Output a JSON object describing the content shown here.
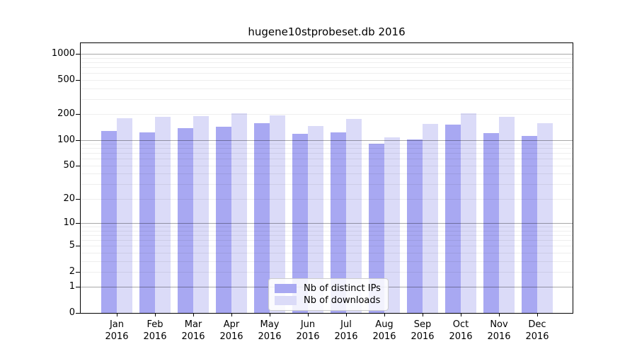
{
  "title": "hugene10stprobeset.db 2016",
  "chart_data": {
    "type": "bar",
    "scale": "log10(1+x)",
    "title": "hugene10stprobeset.db 2016",
    "categories": [
      "Jan",
      "Feb",
      "Mar",
      "Apr",
      "May",
      "Jun",
      "Jul",
      "Aug",
      "Sep",
      "Oct",
      "Nov",
      "Dec"
    ],
    "year": "2016",
    "series": [
      {
        "name": "Nb of distinct IPs",
        "color": "#a8a8f2",
        "values": [
          127,
          123,
          137,
          142,
          158,
          117,
          123,
          90,
          101,
          150,
          120,
          111
        ]
      },
      {
        "name": "Nb of downloads",
        "color": "#dbdbf8",
        "values": [
          180,
          185,
          188,
          203,
          192,
          146,
          176,
          107,
          154,
          203,
          186,
          156
        ]
      }
    ],
    "ytick_values": [
      0,
      1,
      2,
      5,
      10,
      20,
      50,
      100,
      200,
      500,
      1000
    ],
    "ytick_labels": [
      "0",
      "1",
      "2",
      "5",
      "10",
      "20",
      "50",
      "100",
      "200",
      "500",
      "1000"
    ],
    "major_gridlines": [
      1,
      10,
      100,
      1000
    ],
    "minor_gridlines": [
      2,
      3,
      4,
      5,
      6,
      7,
      8,
      9,
      20,
      30,
      40,
      50,
      60,
      70,
      80,
      90,
      200,
      300,
      400,
      500,
      600,
      700,
      800,
      900
    ],
    "ylim": [
      0,
      1330
    ],
    "xlabel": "",
    "ylabel": "",
    "grid": true,
    "legend_position": "bottom-center",
    "legend": [
      "Nb of distinct IPs",
      "Nb of downloads"
    ]
  }
}
